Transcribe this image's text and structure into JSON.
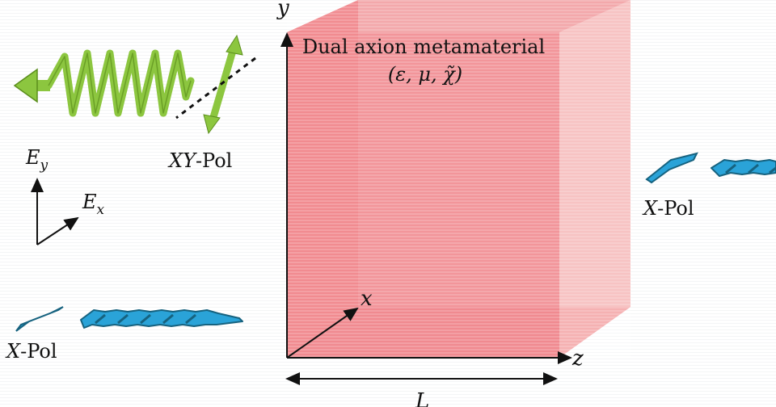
{
  "material": {
    "title": "Dual axion metamaterial",
    "params": "(ε, μ, χ̃)"
  },
  "axes": {
    "x": "x",
    "y": "y",
    "z": "z",
    "length": "L"
  },
  "field_axes": {
    "ey": "E",
    "ey_sub": "y",
    "ex": "E",
    "ex_sub": "x"
  },
  "waves": {
    "reflected": {
      "pol_italic": "XY",
      "pol_suffix": "-Pol"
    },
    "incident": {
      "pol_italic": "X",
      "pol_suffix": "-Pol"
    },
    "transmitted": {
      "pol_italic": "X",
      "pol_suffix": "-Pol"
    }
  },
  "colors": {
    "slab_front": "#f08a8f",
    "slab_side": "#f2a3a6",
    "slab_edge": "#f6bcbc",
    "green_wave": "#8cc63f",
    "green_dark": "#5b8e1d",
    "blue_wave": "#2aa3d8",
    "blue_dark": "#16627f"
  }
}
